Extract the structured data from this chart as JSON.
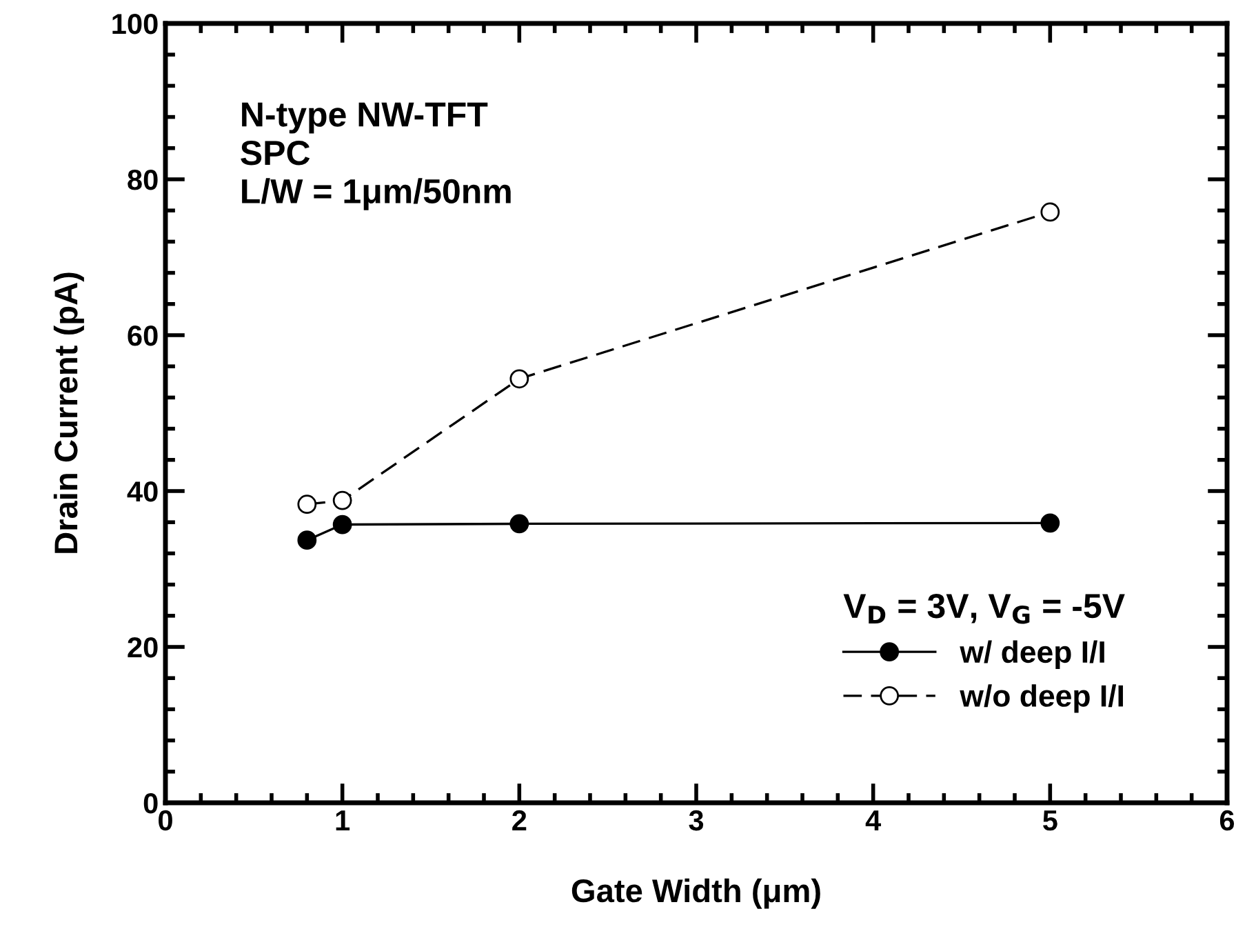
{
  "chart_data": {
    "type": "line",
    "xlabel": "Gate Width (μm)",
    "ylabel": "Drain Current (pA)",
    "x": [
      0.8,
      1,
      2,
      5
    ],
    "series": [
      {
        "name": "w/ deep I/I",
        "color": "#000000",
        "values": [
          33.7,
          35.7,
          35.8,
          35.9
        ],
        "marker": "circle",
        "line_style": "solid"
      },
      {
        "name": "w/o deep I/I",
        "color": "#000000",
        "values": [
          38.3,
          38.8,
          54.4,
          75.8
        ],
        "marker": "circle",
        "line_style": "dashed"
      }
    ],
    "xlim": [
      0,
      6
    ],
    "xticks": [
      0,
      1,
      2,
      3,
      4,
      5,
      6
    ],
    "ylim": [
      0,
      100
    ],
    "yticks": [
      0,
      20,
      40,
      60,
      80,
      100
    ],
    "legend": "bottom right",
    "legend_title": "V$_{D}$ = 3V, V$_{G}$ = -5V",
    "annotations": [
      "N-type NW-TFT\nSPC\nL/W = 1μm/50nm"
    ],
    "grid": false
  }
}
